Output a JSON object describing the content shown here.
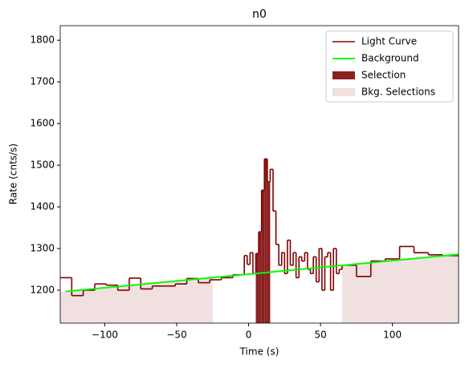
{
  "chart_data": {
    "type": "step",
    "title": "n0",
    "x_label": "Time (s)",
    "y_label": "Rate (cnts/s)",
    "xlim": [
      -131,
      146
    ],
    "ylim": [
      1121,
      1835
    ],
    "xticks": [
      {
        "value": -100,
        "label": "−100"
      },
      {
        "value": -50,
        "label": "−50"
      },
      0,
      50,
      100
    ],
    "yticks": [
      1200,
      1300,
      1400,
      1500,
      1600,
      1700,
      1800
    ],
    "legend": "upper right",
    "series": [
      {
        "name": "Light Curve",
        "color": "#800000",
        "bins": [
          -131,
          -123,
          -115,
          -107,
          -99,
          -91,
          -83,
          -75,
          -67,
          -59,
          -51,
          -43,
          -35,
          -27,
          -19,
          -11,
          -3,
          -1,
          1,
          3,
          5,
          7,
          9,
          11,
          13,
          15,
          17,
          19,
          21,
          23,
          25,
          27,
          29,
          31,
          33,
          35,
          37,
          39,
          41,
          43,
          45,
          47,
          49,
          51,
          53,
          55,
          57,
          59,
          61,
          63,
          65,
          75,
          85,
          95,
          105,
          115,
          125,
          135,
          146
        ],
        "values": [
          1230,
          1187,
          1200,
          1215,
          1212,
          1200,
          1229,
          1203,
          1210,
          1210,
          1215,
          1228,
          1218,
          1225,
          1230,
          1237,
          1283,
          1262,
          1290,
          1240,
          1288,
          1340,
          1440,
          1515,
          1460,
          1490,
          1390,
          1310,
          1260,
          1290,
          1240,
          1320,
          1260,
          1290,
          1230,
          1280,
          1270,
          1290,
          1250,
          1240,
          1280,
          1220,
          1300,
          1200,
          1280,
          1290,
          1200,
          1300,
          1240,
          1250,
          1260,
          1233,
          1270,
          1275,
          1305,
          1290,
          1285,
          1283
        ]
      },
      {
        "name": "Background",
        "color": "#00ff00",
        "x": [
          -127,
          146
        ],
        "values": [
          1197,
          1286
        ]
      }
    ],
    "selection": {
      "name": "Selection",
      "color": "#8b2020",
      "range": [
        5,
        15
      ]
    },
    "bkg_selections": {
      "name": "Bkg. Selections",
      "color": "#f0e0e0",
      "ranges": [
        [
          -131,
          -25
        ],
        [
          65,
          146
        ]
      ]
    }
  }
}
